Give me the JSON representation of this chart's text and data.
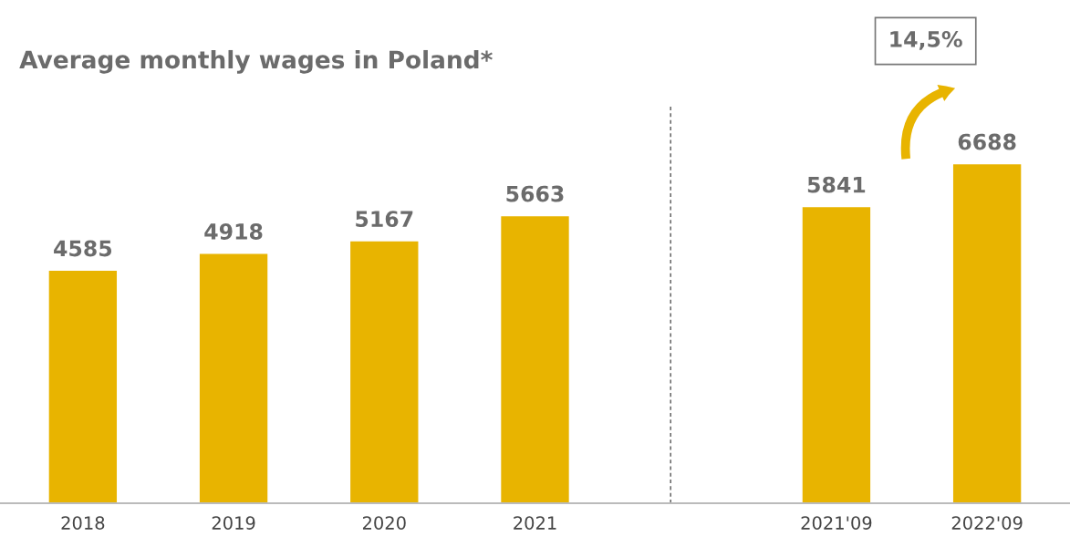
{
  "chart_data": {
    "type": "bar",
    "title": "Average monthly wages in Poland*",
    "categories": [
      "2018",
      "2019",
      "2020",
      "2021",
      null,
      "2021'09",
      "2022'09"
    ],
    "values": [
      4585,
      4918,
      5167,
      5663,
      null,
      5841,
      6688
    ],
    "color": "#e8b400",
    "data_labels": true,
    "annotations": [
      "14,5%"
    ]
  }
}
